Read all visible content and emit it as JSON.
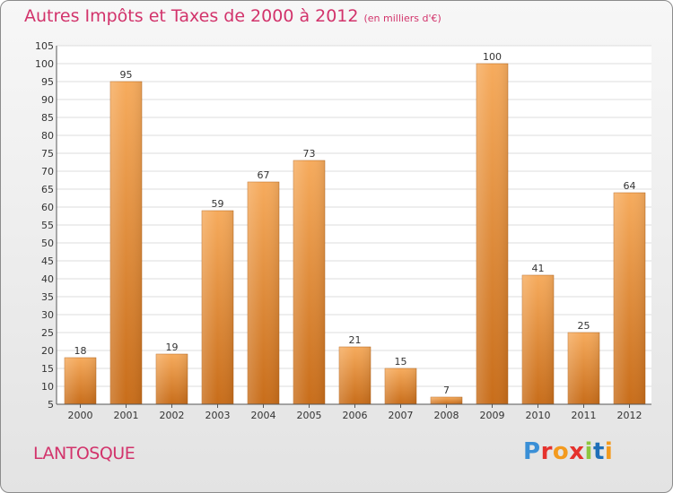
{
  "header": {
    "title": "Autres Impôts et Taxes de 2000 à 2012",
    "unit": "(en milliers d'€)"
  },
  "footer": {
    "town": "LANTOSQUE",
    "logo": "Proxiti"
  },
  "colors": {
    "title": "#d2336b",
    "bar_light": "#f5a85a",
    "bar_dark": "#c96e1b",
    "grid": "#d9d9d9"
  },
  "chart_data": {
    "type": "bar",
    "title": "Autres Impôts et Taxes de 2000 à 2012",
    "subtitle": "(en milliers d'€)",
    "xlabel": "",
    "ylabel": "",
    "categories": [
      "2000",
      "2001",
      "2002",
      "2003",
      "2004",
      "2005",
      "2006",
      "2007",
      "2008",
      "2009",
      "2010",
      "2011",
      "2012"
    ],
    "values": [
      18,
      95,
      19,
      59,
      67,
      73,
      21,
      15,
      7,
      100,
      41,
      25,
      64
    ],
    "ylim": [
      5,
      105
    ],
    "yticks": [
      5,
      10,
      15,
      20,
      25,
      30,
      35,
      40,
      45,
      50,
      55,
      60,
      65,
      70,
      75,
      80,
      85,
      90,
      95,
      100,
      105
    ],
    "grid": true,
    "legend": "none"
  }
}
